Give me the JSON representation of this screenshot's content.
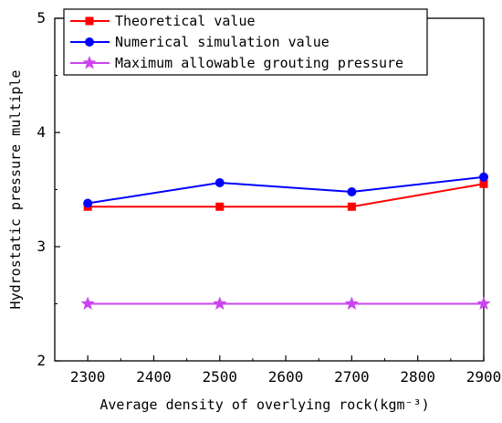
{
  "chart_data": {
    "type": "line",
    "xlabel": "Average density of overlying rock(kgm⁻³)",
    "ylabel": "Hydrostatic pressure multiple",
    "x": [
      2300,
      2500,
      2700,
      2900
    ],
    "xlim": [
      2250,
      2900
    ],
    "ylim": [
      2,
      5
    ],
    "xticks": [
      2300,
      2400,
      2500,
      2600,
      2700,
      2800,
      2900
    ],
    "yticks": [
      2,
      3,
      4,
      5
    ],
    "grid": false,
    "legend_position": "top-left",
    "series": [
      {
        "name": "Theoretical value",
        "values": [
          3.35,
          3.35,
          3.35,
          3.55
        ],
        "color": "#ff0000",
        "marker": "square"
      },
      {
        "name": "Numerical simulation value",
        "values": [
          3.38,
          3.56,
          3.48,
          3.61
        ],
        "color": "#0000ff",
        "marker": "circle"
      },
      {
        "name": "Maximum allowable grouting pressure",
        "values": [
          2.5,
          2.5,
          2.5,
          2.5
        ],
        "color": "#cc44ee",
        "marker": "star"
      }
    ]
  }
}
